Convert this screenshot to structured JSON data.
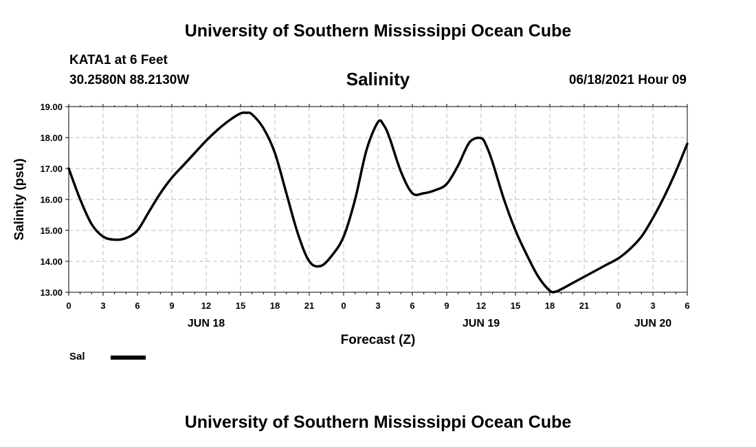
{
  "header": {
    "title": "University of Southern Mississippi Ocean Cube",
    "station": "KATA1 at 6 Feet",
    "coordinates": "30.2580N  88.2130W",
    "parameter": "Salinity",
    "datetime": "06/18/2021 Hour 09"
  },
  "footer": {
    "title": "University of Southern Mississippi Ocean Cube"
  },
  "legend": {
    "label": "Sal",
    "color": "#000000"
  },
  "chart_data": {
    "type": "line",
    "title": "Salinity",
    "xlabel": "Forecast (Z)",
    "ylabel": "Salinity (psu)",
    "x_unit": "hours from 00Z JUN 18",
    "xlim": [
      0,
      54
    ],
    "ylim": [
      13.0,
      19.0
    ],
    "x_ticks": [
      0,
      3,
      6,
      9,
      12,
      15,
      18,
      21,
      24,
      27,
      30,
      33,
      36,
      39,
      42,
      45,
      48,
      51,
      54
    ],
    "x_tick_labels": [
      "0",
      "3",
      "6",
      "9",
      "12",
      "15",
      "18",
      "21",
      "0",
      "3",
      "6",
      "9",
      "12",
      "15",
      "18",
      "21",
      "0",
      "3",
      "6"
    ],
    "y_ticks": [
      13,
      14,
      15,
      16,
      17,
      18,
      19
    ],
    "y_tick_labels": [
      "13.00",
      "14.00",
      "15.00",
      "16.00",
      "17.00",
      "18.00",
      "19.00"
    ],
    "date_labels": [
      {
        "x": 12,
        "label": "JUN 18"
      },
      {
        "x": 36,
        "label": "JUN 19"
      },
      {
        "x": 51,
        "label": "JUN 20"
      }
    ],
    "grid": true,
    "series": [
      {
        "name": "Sal",
        "color": "#000000",
        "x": [
          0,
          1,
          2,
          3,
          4,
          5,
          6,
          7,
          8,
          9,
          10,
          11,
          12,
          13,
          14,
          15,
          15.5,
          16,
          17,
          18,
          19,
          20,
          21,
          22,
          23,
          24,
          25,
          26,
          27,
          27.5,
          28,
          29,
          30,
          31,
          32,
          33,
          34,
          35,
          36,
          36.5,
          37,
          38,
          39,
          40,
          41,
          42,
          42.5,
          43,
          44,
          45,
          46,
          47,
          48,
          49,
          50,
          51,
          52,
          53,
          54
        ],
        "y": [
          17.0,
          16.0,
          15.2,
          14.8,
          14.7,
          14.75,
          15.0,
          15.6,
          16.2,
          16.7,
          17.1,
          17.5,
          17.9,
          18.25,
          18.55,
          18.78,
          18.8,
          18.75,
          18.3,
          17.5,
          16.2,
          14.9,
          14.0,
          13.85,
          14.2,
          14.8,
          16.0,
          17.6,
          18.5,
          18.4,
          18.0,
          16.9,
          16.2,
          16.2,
          16.3,
          16.5,
          17.1,
          17.85,
          17.98,
          17.7,
          17.2,
          16.0,
          15.0,
          14.2,
          13.5,
          13.05,
          13.02,
          13.1,
          13.3,
          13.5,
          13.7,
          13.9,
          14.1,
          14.4,
          14.8,
          15.4,
          16.1,
          16.9,
          17.8
        ]
      }
    ]
  }
}
